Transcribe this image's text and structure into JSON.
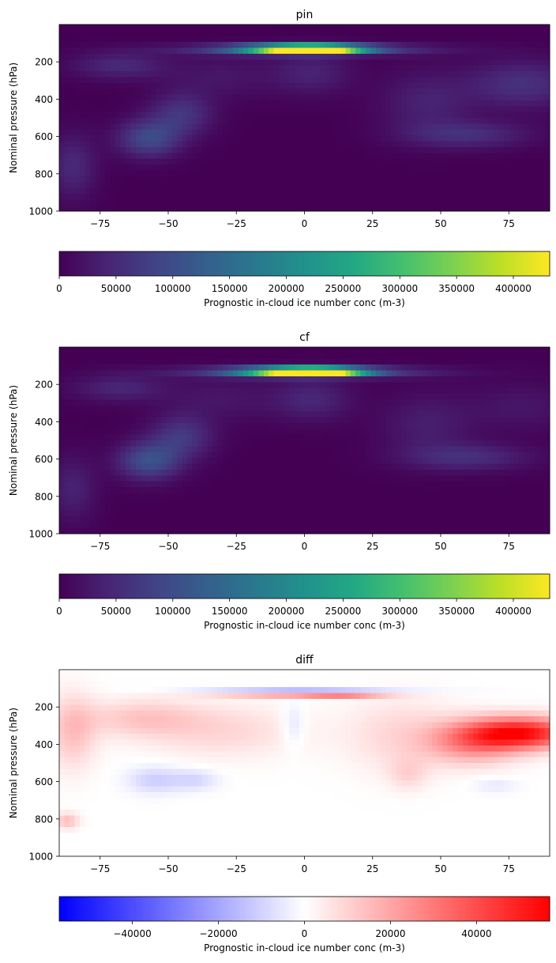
{
  "chart_data": [
    {
      "type": "heatmap",
      "title": "pin",
      "xlabel": "",
      "ylabel": "Nominal pressure (hPa)",
      "xlim": [
        -90,
        90
      ],
      "ylim": [
        1000,
        0
      ],
      "xticks": [
        -75,
        -50,
        -25,
        0,
        25,
        50,
        75
      ],
      "xtick_labels": [
        "−75",
        "−50",
        "−25",
        "0",
        "25",
        "50",
        "75"
      ],
      "yticks": [
        200,
        400,
        600,
        800,
        1000
      ],
      "ytick_labels": [
        "200",
        "400",
        "600",
        "800",
        "1000"
      ],
      "colormap": "viridis",
      "colorbar": {
        "label": "Prognostic in-cloud ice number conc (m-3)",
        "min": 0,
        "max": 432000,
        "ticks": [
          0,
          50000,
          100000,
          150000,
          200000,
          250000,
          300000,
          350000,
          400000
        ],
        "tick_labels": [
          "0",
          "50000",
          "100000",
          "150000",
          "200000",
          "250000",
          "300000",
          "350000",
          "400000"
        ]
      },
      "features": [
        {
          "lat": -5,
          "p": 130,
          "slat": 13,
          "sp": 14,
          "v": 380000
        },
        {
          "lat": 8,
          "p": 130,
          "slat": 11,
          "sp": 13,
          "v": 360000
        },
        {
          "lat": 0,
          "p": 135,
          "slat": 30,
          "sp": 22,
          "v": 110000
        },
        {
          "lat": 3,
          "p": 260,
          "slat": 10,
          "sp": 80,
          "v": 40000
        },
        {
          "lat": -57,
          "p": 610,
          "slat": 8,
          "sp": 70,
          "v": 95000
        },
        {
          "lat": -45,
          "p": 480,
          "slat": 8,
          "sp": 80,
          "v": 65000
        },
        {
          "lat": -68,
          "p": 220,
          "slat": 12,
          "sp": 50,
          "v": 50000
        },
        {
          "lat": 60,
          "p": 590,
          "slat": 16,
          "sp": 50,
          "v": 55000
        },
        {
          "lat": 45,
          "p": 420,
          "slat": 12,
          "sp": 120,
          "v": 40000
        },
        {
          "lat": 80,
          "p": 320,
          "slat": 14,
          "sp": 90,
          "v": 60000
        },
        {
          "lat": -85,
          "p": 760,
          "slat": 6,
          "sp": 120,
          "v": 50000
        },
        {
          "lat": -30,
          "p": 280,
          "slat": 15,
          "sp": 80,
          "v": 25000
        }
      ]
    },
    {
      "type": "heatmap",
      "title": "cf",
      "xlabel": "",
      "ylabel": "Nominal pressure (hPa)",
      "xlim": [
        -90,
        90
      ],
      "ylim": [
        1000,
        0
      ],
      "xticks": [
        -75,
        -50,
        -25,
        0,
        25,
        50,
        75
      ],
      "xtick_labels": [
        "−75",
        "−50",
        "−25",
        "0",
        "25",
        "50",
        "75"
      ],
      "yticks": [
        200,
        400,
        600,
        800,
        1000
      ],
      "ytick_labels": [
        "200",
        "400",
        "600",
        "800",
        "1000"
      ],
      "colormap": "viridis",
      "colorbar": {
        "label": "Prognostic in-cloud ice number conc (m-3)",
        "min": 0,
        "max": 432000,
        "ticks": [
          0,
          50000,
          100000,
          150000,
          200000,
          250000,
          300000,
          350000,
          400000
        ],
        "tick_labels": [
          "0",
          "50000",
          "100000",
          "150000",
          "200000",
          "250000",
          "300000",
          "350000",
          "400000"
        ]
      },
      "features": [
        {
          "lat": -5,
          "p": 130,
          "slat": 13,
          "sp": 14,
          "v": 390000
        },
        {
          "lat": 8,
          "p": 130,
          "slat": 11,
          "sp": 13,
          "v": 370000
        },
        {
          "lat": 0,
          "p": 135,
          "slat": 30,
          "sp": 22,
          "v": 110000
        },
        {
          "lat": 3,
          "p": 280,
          "slat": 10,
          "sp": 80,
          "v": 45000
        },
        {
          "lat": -57,
          "p": 610,
          "slat": 8,
          "sp": 70,
          "v": 105000
        },
        {
          "lat": -45,
          "p": 480,
          "slat": 8,
          "sp": 80,
          "v": 70000
        },
        {
          "lat": -68,
          "p": 220,
          "slat": 12,
          "sp": 50,
          "v": 45000
        },
        {
          "lat": 60,
          "p": 590,
          "slat": 16,
          "sp": 50,
          "v": 55000
        },
        {
          "lat": 45,
          "p": 420,
          "slat": 12,
          "sp": 120,
          "v": 35000
        },
        {
          "lat": 80,
          "p": 320,
          "slat": 14,
          "sp": 90,
          "v": 25000
        },
        {
          "lat": -85,
          "p": 760,
          "slat": 6,
          "sp": 120,
          "v": 40000
        },
        {
          "lat": -30,
          "p": 280,
          "slat": 15,
          "sp": 80,
          "v": 25000
        }
      ]
    },
    {
      "type": "heatmap",
      "title": "diff",
      "xlabel": "",
      "ylabel": "Nominal pressure (hPa)",
      "xlim": [
        -90,
        90
      ],
      "ylim": [
        1000,
        0
      ],
      "xticks": [
        -75,
        -50,
        -25,
        0,
        25,
        50,
        75
      ],
      "xtick_labels": [
        "−75",
        "−50",
        "−25",
        "0",
        "25",
        "50",
        "75"
      ],
      "yticks": [
        200,
        400,
        600,
        800,
        1000
      ],
      "ytick_labels": [
        "200",
        "400",
        "600",
        "800",
        "1000"
      ],
      "colormap": "bwr",
      "colorbar": {
        "label": "Prognostic in-cloud ice number conc (m-3)",
        "min": -57000,
        "max": 57000,
        "ticks": [
          -40000,
          -20000,
          0,
          20000,
          40000
        ],
        "tick_labels": [
          "−40000",
          "−20000",
          "0",
          "20000",
          "40000"
        ]
      },
      "features": [
        {
          "lat": 80,
          "p": 340,
          "slat": 14,
          "sp": 60,
          "v": 52000
        },
        {
          "lat": 62,
          "p": 390,
          "slat": 12,
          "sp": 80,
          "v": 25000
        },
        {
          "lat": 35,
          "p": 350,
          "slat": 14,
          "sp": 140,
          "v": 9000
        },
        {
          "lat": -85,
          "p": 330,
          "slat": 6,
          "sp": 140,
          "v": 14000
        },
        {
          "lat": -60,
          "p": 260,
          "slat": 15,
          "sp": 70,
          "v": 12000
        },
        {
          "lat": -30,
          "p": 330,
          "slat": 20,
          "sp": 100,
          "v": 9000
        },
        {
          "lat": 0,
          "p": 105,
          "slat": 28,
          "sp": 10,
          "v": -16000
        },
        {
          "lat": -3,
          "p": 145,
          "slat": 20,
          "sp": 8,
          "v": 20000
        },
        {
          "lat": 15,
          "p": 140,
          "slat": 10,
          "sp": 8,
          "v": 14000
        },
        {
          "lat": -4,
          "p": 300,
          "slat": 3,
          "sp": 80,
          "v": -8000
        },
        {
          "lat": -55,
          "p": 590,
          "slat": 7,
          "sp": 50,
          "v": -11000
        },
        {
          "lat": -40,
          "p": 590,
          "slat": 6,
          "sp": 40,
          "v": -9000
        },
        {
          "lat": 70,
          "p": 620,
          "slat": 6,
          "sp": 30,
          "v": -5000
        },
        {
          "lat": -87,
          "p": 810,
          "slat": 3,
          "sp": 30,
          "v": 15000
        },
        {
          "lat": 38,
          "p": 560,
          "slat": 5,
          "sp": 60,
          "v": 8000
        }
      ]
    }
  ]
}
